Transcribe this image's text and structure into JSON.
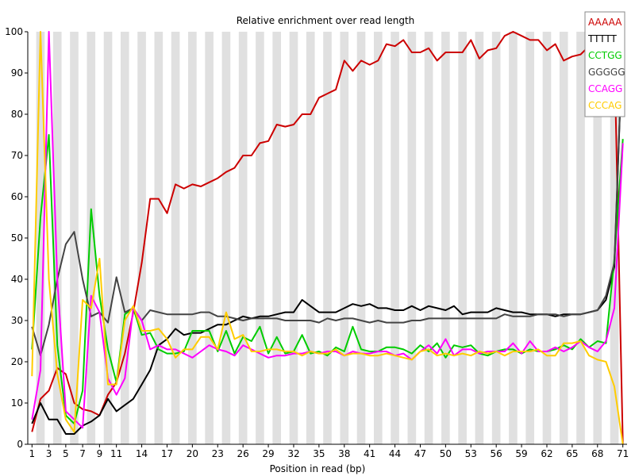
{
  "chart_data": {
    "type": "line",
    "title": "Relative enrichment over read length",
    "xlabel": "Position in read (bp)",
    "ylabel": "",
    "ylim": [
      0,
      100
    ],
    "xlim": [
      1,
      71
    ],
    "x_tick_labels": [
      1,
      3,
      5,
      7,
      9,
      11,
      14,
      17,
      20,
      23,
      26,
      29,
      32,
      35,
      38,
      41,
      44,
      47,
      50,
      53,
      56,
      59,
      62,
      65,
      68,
      71
    ],
    "y_ticks": [
      0,
      10,
      20,
      30,
      40,
      50,
      60,
      70,
      80,
      90,
      100
    ],
    "grid": "alternating vertical bands",
    "legend_position": "top-right",
    "series": [
      {
        "name": "AAAAA",
        "color": "#cc0000",
        "values": [
          3,
          11,
          13,
          18.5,
          17,
          10,
          8.5,
          8,
          7,
          12,
          15,
          22,
          32,
          44,
          59.5,
          59.5,
          56,
          63,
          62,
          63,
          62.5,
          63.5,
          64.5,
          66,
          67,
          70,
          70,
          73,
          73.5,
          77.5,
          77,
          77.5,
          80,
          80,
          84,
          85,
          86,
          93,
          90.5,
          93,
          92,
          93,
          97,
          96.5,
          98,
          95,
          95,
          96,
          93,
          95,
          95,
          95,
          98,
          93.5,
          95.5,
          96,
          99,
          100,
          99,
          98,
          98,
          95.5,
          97,
          93,
          94,
          94.5,
          96.5,
          97,
          95,
          95.5,
          0
        ]
      },
      {
        "name": "TTTTT",
        "color": "#000000",
        "values": [
          5,
          10,
          6,
          6,
          2.5,
          2.5,
          4.5,
          5.5,
          7,
          11,
          8,
          9.5,
          11,
          14.5,
          18,
          24,
          25.5,
          28,
          26.5,
          27,
          27,
          28,
          29,
          29,
          30,
          31,
          30.5,
          31,
          31,
          31.5,
          32,
          32,
          35,
          33.5,
          32,
          32,
          32,
          33,
          34,
          33.5,
          34,
          33,
          33,
          32.5,
          32.5,
          33.5,
          32.5,
          33.5,
          33,
          32.5,
          33.5,
          31.5,
          32,
          32,
          32,
          33,
          32.5,
          32,
          32,
          31.5,
          31.5,
          31.5,
          31,
          31.5,
          31.5,
          31.5,
          32,
          32.5,
          35,
          43,
          100
        ]
      },
      {
        "name": "CCTGG",
        "color": "#00cc00",
        "values": [
          23,
          55,
          75,
          24,
          7,
          5,
          13,
          57,
          36,
          23,
          15,
          31.5,
          33,
          26.5,
          27,
          23,
          22,
          22,
          22.5,
          27.5,
          27.5,
          27.5,
          22.5,
          27.5,
          22,
          26,
          25,
          28.5,
          22,
          26,
          22,
          22.5,
          26.5,
          22,
          22.5,
          21.5,
          23.5,
          22.5,
          28.5,
          23,
          22.5,
          22.5,
          23.5,
          23.5,
          23,
          22,
          24,
          22.5,
          24.5,
          21,
          24,
          23.5,
          24,
          22,
          21.5,
          22.5,
          23,
          23,
          22,
          23,
          22.5,
          22.5,
          23,
          24,
          23,
          25.5,
          23.5,
          25,
          24.5,
          45,
          74
        ]
      },
      {
        "name": "GGGGG",
        "color": "#444444",
        "values": [
          28.5,
          21.5,
          29,
          40,
          48.5,
          51.5,
          40,
          31,
          32,
          29.5,
          40.5,
          32,
          33,
          30,
          32.5,
          32,
          31.5,
          31.5,
          31.5,
          31.5,
          32,
          32,
          31,
          31,
          30.5,
          30,
          30.5,
          30.5,
          30.5,
          30.5,
          30,
          30,
          30,
          30,
          29.5,
          30.5,
          30,
          30.5,
          30.5,
          30,
          29.5,
          30,
          29.5,
          29.5,
          29.5,
          30,
          30,
          30.5,
          30.5,
          30.5,
          30.5,
          30.5,
          30.5,
          30.5,
          30.5,
          30.5,
          31.5,
          31,
          31,
          31,
          31.5,
          31.5,
          31.5,
          31,
          31.5,
          31.5,
          32,
          32.5,
          36,
          44,
          100
        ]
      },
      {
        "name": "CCAGG",
        "color": "#ff00ff",
        "values": [
          6,
          18,
          100,
          40,
          8,
          6,
          4,
          36,
          32,
          16,
          12,
          16,
          33,
          30,
          23,
          24,
          23,
          23,
          22,
          21,
          22.5,
          24,
          23,
          22.5,
          21.5,
          24,
          23,
          22,
          21,
          21.5,
          21.5,
          22,
          22,
          22.5,
          22,
          22.5,
          22.5,
          21.5,
          22.5,
          22,
          22,
          22.5,
          22.5,
          21.5,
          22,
          20.5,
          22.5,
          24,
          22,
          25.5,
          21.5,
          23,
          23,
          22,
          22.5,
          22.5,
          22.5,
          24.5,
          22,
          25,
          22.5,
          22.5,
          23.5,
          22.5,
          23.5,
          25,
          23.5,
          22.5,
          25,
          33,
          73
        ]
      },
      {
        "name": "CCCAG",
        "color": "#ffcc00",
        "values": [
          16.5,
          100,
          40,
          17,
          6,
          3,
          35,
          33,
          45,
          14.5,
          14.5,
          30,
          33.5,
          27.5,
          27.5,
          28,
          25.5,
          21,
          23,
          23,
          26,
          26,
          23,
          32,
          25.5,
          26.5,
          22.5,
          22.5,
          23,
          23,
          22.5,
          22.5,
          21.5,
          22.5,
          22,
          22,
          23,
          21.5,
          22,
          22,
          21.5,
          21.5,
          22,
          21.5,
          21,
          20.5,
          22.5,
          23,
          21.5,
          22,
          21.5,
          22,
          21.5,
          22.5,
          22,
          22.5,
          21.5,
          22.5,
          22.5,
          22.5,
          23,
          21.5,
          21.5,
          24.5,
          24.5,
          25,
          21.5,
          20.5,
          20,
          14,
          0
        ]
      }
    ]
  }
}
